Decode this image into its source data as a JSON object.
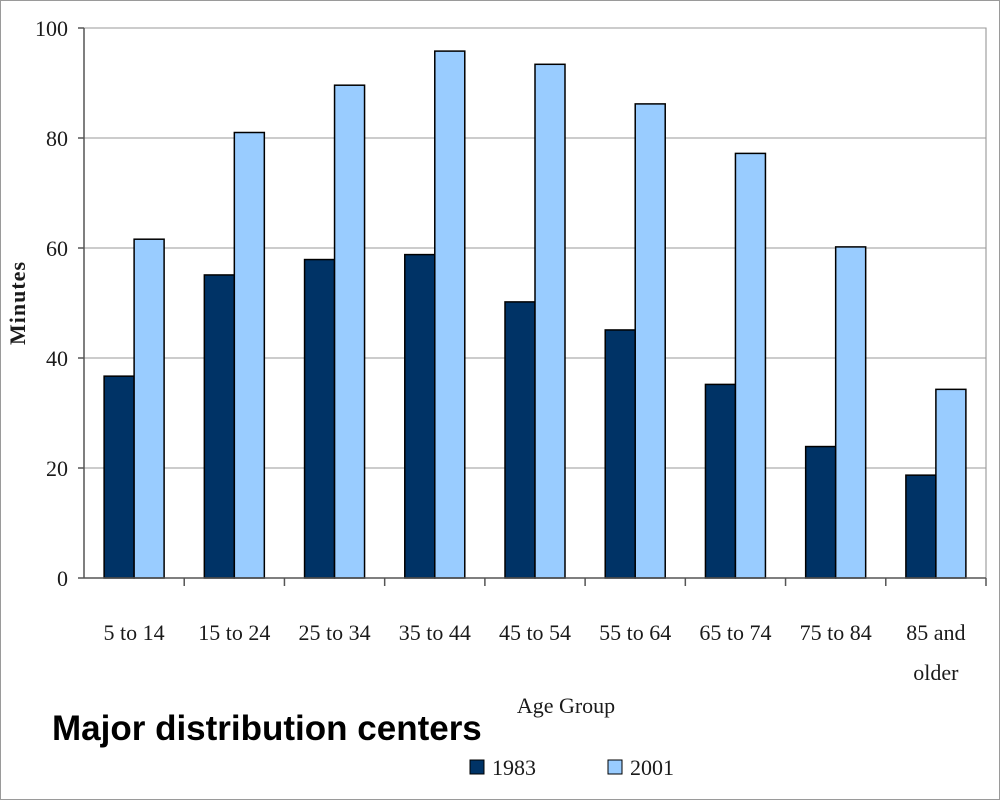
{
  "chart_data": {
    "type": "bar",
    "title": "Major distribution centers",
    "xlabel": "Age Group",
    "ylabel": "Minutes",
    "ylim": [
      0,
      100
    ],
    "yticks": [
      "0",
      "20",
      "40",
      "60",
      "80",
      "100"
    ],
    "categories": [
      "5 to 14",
      "15 to 24",
      "25 to 34",
      "35 to 44",
      "45 to 54",
      "55 to 64",
      "65 to 74",
      "75 to 84",
      "85 and older"
    ],
    "series": [
      {
        "name": "1983",
        "color": "#003366",
        "values": [
          36.7,
          55.1,
          57.9,
          58.8,
          50.2,
          45.1,
          35.2,
          23.9,
          18.7
        ]
      },
      {
        "name": "2001",
        "color": "#99ccff",
        "values": [
          61.6,
          81.0,
          89.6,
          95.8,
          93.4,
          86.2,
          77.2,
          60.2,
          34.3
        ]
      }
    ],
    "grid": true,
    "legend_position": "bottom"
  }
}
